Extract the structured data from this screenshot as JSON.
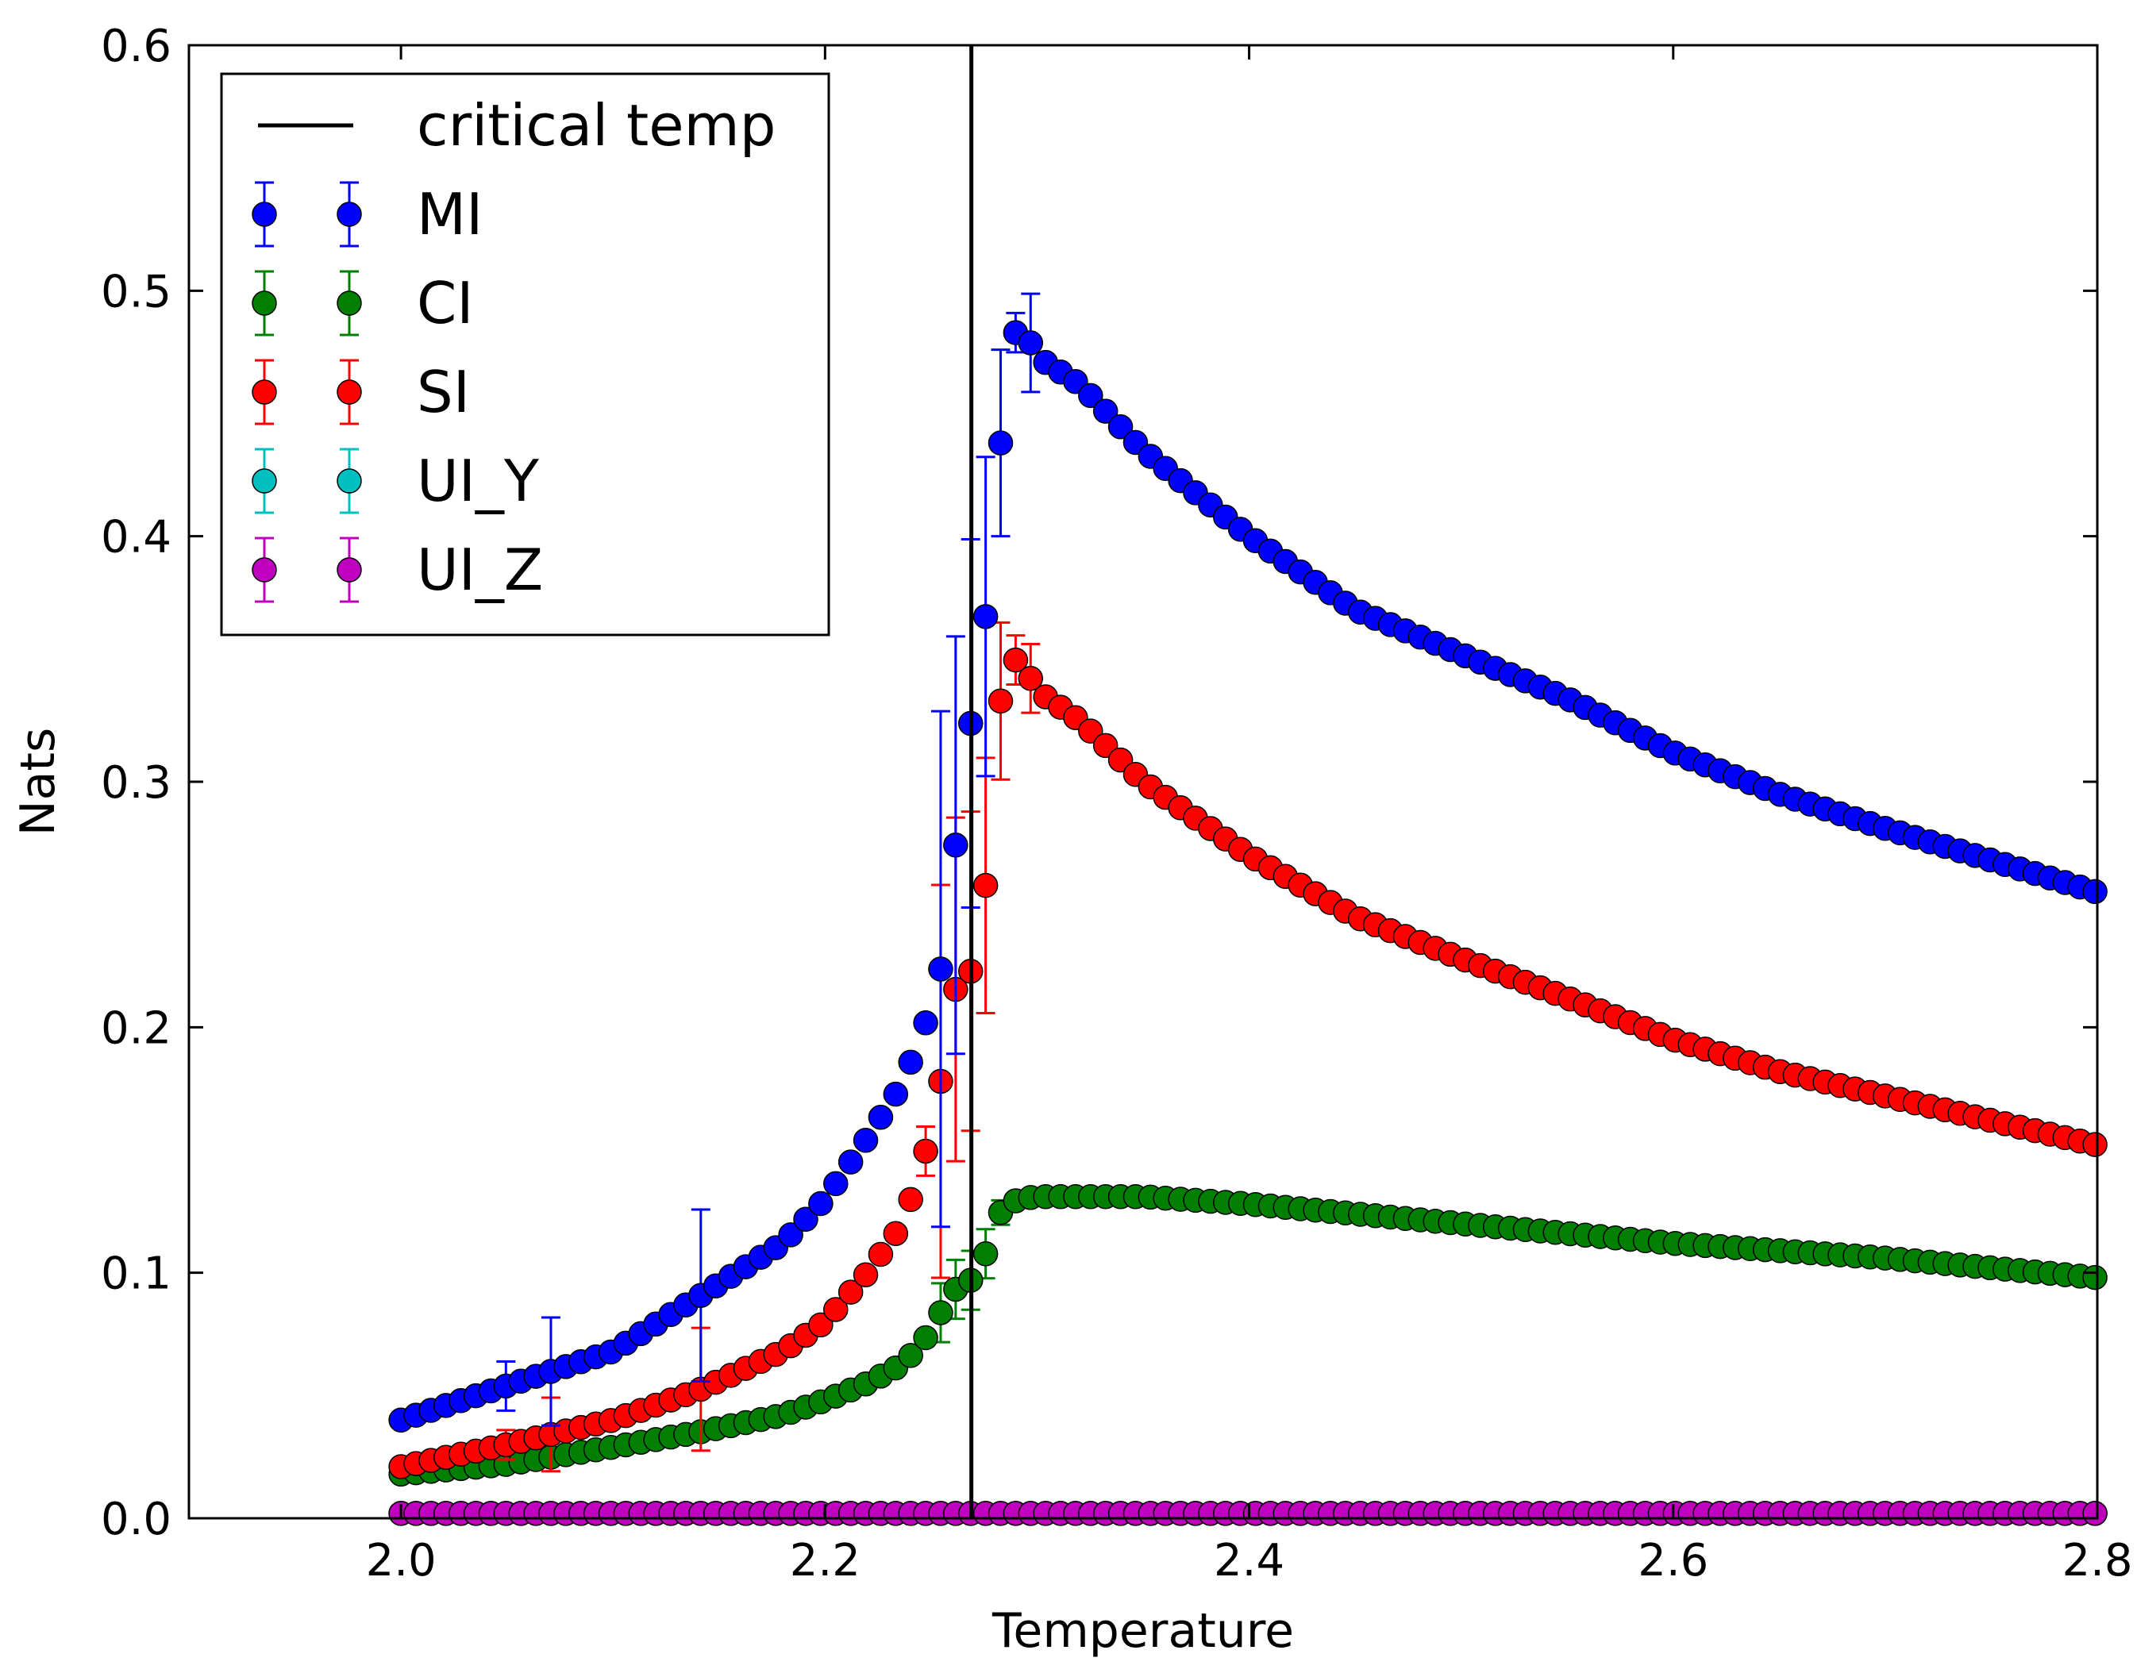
{
  "chart_data": {
    "type": "scatter",
    "xlabel": "Temperature",
    "ylabel": "Nats",
    "xlim": [
      1.9,
      2.8
    ],
    "ylim": [
      0.0,
      0.6
    ],
    "xticks": [
      "2.0",
      "2.2",
      "2.4",
      "2.6",
      "2.8"
    ],
    "yticks": [
      "0.0",
      "0.1",
      "0.2",
      "0.3",
      "0.4",
      "0.5",
      "0.6"
    ],
    "vertical_line": {
      "name": "critical temp",
      "x": 2.269,
      "color": "#000000"
    },
    "legend_position": "top-left",
    "series": [
      {
        "name": "MI",
        "color": "#0000ff"
      },
      {
        "name": "CI",
        "color": "#007f00"
      },
      {
        "name": "SI",
        "color": "#ff0000"
      },
      {
        "name": "UI_Y",
        "color": "#00bfbf"
      },
      {
        "name": "UI_Z",
        "color": "#bf00bf"
      }
    ],
    "x_range": {
      "start": 2.0,
      "end": 2.8,
      "step": 0.00707
    },
    "mi_anchors": [
      [
        2.0,
        0.04
      ],
      [
        2.05,
        0.054
      ],
      [
        2.1,
        0.068
      ],
      [
        2.14,
        0.09
      ],
      [
        2.18,
        0.112
      ],
      [
        2.2,
        0.13
      ],
      [
        2.22,
        0.155
      ],
      [
        2.235,
        0.175
      ],
      [
        2.245,
        0.195
      ],
      [
        2.254,
        0.22
      ],
      [
        2.261,
        0.27
      ],
      [
        2.268,
        0.32
      ],
      [
        2.275,
        0.36
      ],
      [
        2.283,
        0.44
      ],
      [
        2.291,
        0.49
      ],
      [
        2.3,
        0.473
      ],
      [
        2.32,
        0.462
      ],
      [
        2.35,
        0.435
      ],
      [
        2.4,
        0.4
      ],
      [
        2.45,
        0.37
      ],
      [
        2.5,
        0.352
      ],
      [
        2.55,
        0.334
      ],
      [
        2.6,
        0.312
      ],
      [
        2.65,
        0.295
      ],
      [
        2.7,
        0.281
      ],
      [
        2.75,
        0.268
      ],
      [
        2.8,
        0.255
      ]
    ],
    "si_anchors": [
      [
        2.0,
        0.021
      ],
      [
        2.05,
        0.03
      ],
      [
        2.1,
        0.04
      ],
      [
        2.14,
        0.052
      ],
      [
        2.18,
        0.068
      ],
      [
        2.2,
        0.08
      ],
      [
        2.22,
        0.1
      ],
      [
        2.235,
        0.118
      ],
      [
        2.245,
        0.14
      ],
      [
        2.254,
        0.175
      ],
      [
        2.261,
        0.215
      ],
      [
        2.268,
        0.22
      ],
      [
        2.275,
        0.25
      ],
      [
        2.283,
        0.335
      ],
      [
        2.291,
        0.352
      ],
      [
        2.3,
        0.337
      ],
      [
        2.32,
        0.325
      ],
      [
        2.35,
        0.3
      ],
      [
        2.4,
        0.27
      ],
      [
        2.45,
        0.245
      ],
      [
        2.5,
        0.228
      ],
      [
        2.55,
        0.212
      ],
      [
        2.6,
        0.195
      ],
      [
        2.65,
        0.182
      ],
      [
        2.7,
        0.172
      ],
      [
        2.75,
        0.162
      ],
      [
        2.8,
        0.152
      ]
    ],
    "ci_anchors": [
      [
        2.0,
        0.018
      ],
      [
        2.05,
        0.022
      ],
      [
        2.1,
        0.029
      ],
      [
        2.14,
        0.035
      ],
      [
        2.18,
        0.042
      ],
      [
        2.2,
        0.048
      ],
      [
        2.22,
        0.055
      ],
      [
        2.235,
        0.062
      ],
      [
        2.245,
        0.07
      ],
      [
        2.254,
        0.083
      ],
      [
        2.261,
        0.093
      ],
      [
        2.268,
        0.096
      ],
      [
        2.275,
        0.106
      ],
      [
        2.283,
        0.125
      ],
      [
        2.291,
        0.13
      ],
      [
        2.3,
        0.131
      ],
      [
        2.35,
        0.131
      ],
      [
        2.4,
        0.128
      ],
      [
        2.45,
        0.124
      ],
      [
        2.5,
        0.12
      ],
      [
        2.55,
        0.116
      ],
      [
        2.6,
        0.112
      ],
      [
        2.65,
        0.109
      ],
      [
        2.7,
        0.106
      ],
      [
        2.75,
        0.102
      ],
      [
        2.8,
        0.098
      ]
    ],
    "ui_value": 0.002,
    "error_bars": {
      "MI": [
        [
          2.05,
          0.01
        ],
        [
          2.07,
          0.022
        ],
        [
          2.14,
          0.035
        ],
        [
          2.254,
          0.105
        ],
        [
          2.261,
          0.085
        ],
        [
          2.268,
          0.075
        ],
        [
          2.275,
          0.065
        ],
        [
          2.283,
          0.038
        ],
        [
          2.291,
          0.008
        ],
        [
          2.3,
          0.02
        ]
      ],
      "SI": [
        [
          2.05,
          0.006
        ],
        [
          2.07,
          0.015
        ],
        [
          2.14,
          0.025
        ],
        [
          2.245,
          0.01
        ],
        [
          2.254,
          0.08
        ],
        [
          2.261,
          0.07
        ],
        [
          2.268,
          0.065
        ],
        [
          2.275,
          0.052
        ],
        [
          2.283,
          0.032
        ],
        [
          2.291,
          0.01
        ],
        [
          2.3,
          0.014
        ]
      ],
      "CI": [
        [
          2.254,
          0.012
        ],
        [
          2.261,
          0.012
        ],
        [
          2.268,
          0.012
        ],
        [
          2.275,
          0.01
        ],
        [
          2.283,
          0.005
        ]
      ],
      "UI_Y": [],
      "UI_Z": []
    }
  }
}
